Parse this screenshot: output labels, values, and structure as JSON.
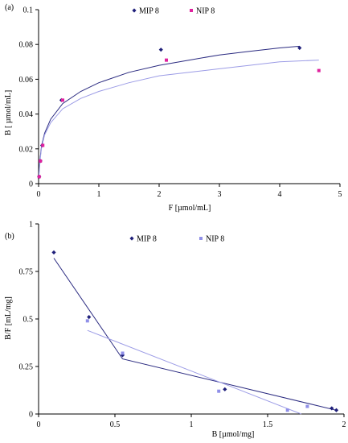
{
  "chart_data": [
    {
      "type": "scatter",
      "panel_label": "(a)",
      "xlabel": "F [µmol/mL]",
      "ylabel": "B [ µmol/mL]",
      "xlim": [
        0,
        5
      ],
      "ylim": [
        0,
        0.1
      ],
      "x_ticks": [
        "0",
        "1",
        "2",
        "3",
        "4",
        "5"
      ],
      "y_ticks": [
        "0",
        "0.02",
        "0.04",
        "0.06",
        "0.08",
        "0.1"
      ],
      "legend_position": "top-right",
      "series": [
        {
          "name": "MIP 8",
          "color": "#1f1f7a",
          "marker": "diamond",
          "points": [
            [
              0.01,
              0.004
            ],
            [
              0.03,
              0.013
            ],
            [
              0.06,
              0.022
            ],
            [
              0.38,
              0.048
            ],
            [
              2.03,
              0.077
            ],
            [
              4.33,
              0.078
            ]
          ],
          "fit_color": "#2a2a80",
          "fit": [
            [
              0.005,
              0.005
            ],
            [
              0.02,
              0.013
            ],
            [
              0.05,
              0.022
            ],
            [
              0.1,
              0.029
            ],
            [
              0.2,
              0.037
            ],
            [
              0.4,
              0.046
            ],
            [
              0.7,
              0.053
            ],
            [
              1.0,
              0.058
            ],
            [
              1.5,
              0.064
            ],
            [
              2.0,
              0.068
            ],
            [
              2.5,
              0.071
            ],
            [
              3.0,
              0.074
            ],
            [
              3.5,
              0.076
            ],
            [
              4.0,
              0.078
            ],
            [
              4.33,
              0.079
            ]
          ]
        },
        {
          "name": "NIP 8",
          "color": "#e0219e",
          "marker": "square",
          "points": [
            [
              0.01,
              0.004
            ],
            [
              0.03,
              0.013
            ],
            [
              0.07,
              0.022
            ],
            [
              0.4,
              0.048
            ],
            [
              2.12,
              0.071
            ],
            [
              4.65,
              0.065
            ]
          ],
          "fit_color": "#9c9ce6",
          "fit": [
            [
              0.005,
              0.004
            ],
            [
              0.02,
              0.012
            ],
            [
              0.05,
              0.021
            ],
            [
              0.1,
              0.028
            ],
            [
              0.2,
              0.035
            ],
            [
              0.4,
              0.043
            ],
            [
              0.7,
              0.049
            ],
            [
              1.0,
              0.053
            ],
            [
              1.5,
              0.058
            ],
            [
              2.0,
              0.062
            ],
            [
              2.5,
              0.064
            ],
            [
              3.0,
              0.066
            ],
            [
              3.5,
              0.068
            ],
            [
              4.0,
              0.07
            ],
            [
              4.65,
              0.071
            ]
          ]
        }
      ]
    },
    {
      "type": "scatter",
      "panel_label": "(b)",
      "xlabel": "B [µmol/mg]",
      "ylabel": "B/F [mL/mg]",
      "xlim": [
        0,
        2
      ],
      "ylim": [
        0,
        1
      ],
      "x_ticks": [
        "0",
        "0.5",
        "1",
        "1.5",
        "2"
      ],
      "y_ticks": [
        "0",
        "0.25",
        "0.5",
        "0.75",
        "1"
      ],
      "legend_position": "top-right",
      "series": [
        {
          "name": "MIP 8",
          "color": "#1f1f7a",
          "marker": "diamond",
          "points": [
            [
              0.1,
              0.85
            ],
            [
              0.33,
              0.51
            ],
            [
              0.55,
              0.31
            ],
            [
              1.22,
              0.13
            ],
            [
              1.92,
              0.03
            ],
            [
              1.95,
              0.02
            ]
          ],
          "fit_color": "#2a2a80",
          "fit": [
            [
              0.1,
              0.82
            ],
            [
              0.55,
              0.29
            ],
            [
              1.95,
              0.02
            ]
          ]
        },
        {
          "name": "NIP 8",
          "color": "#8f8fe8",
          "marker": "square",
          "points": [
            [
              0.32,
              0.49
            ],
            [
              0.55,
              0.32
            ],
            [
              1.18,
              0.12
            ],
            [
              1.63,
              0.02
            ],
            [
              1.76,
              0.04
            ]
          ],
          "fit_color": "#9c9ce6",
          "fit": [
            [
              0.32,
              0.44
            ],
            [
              1.72,
              0.0
            ]
          ]
        }
      ]
    }
  ]
}
